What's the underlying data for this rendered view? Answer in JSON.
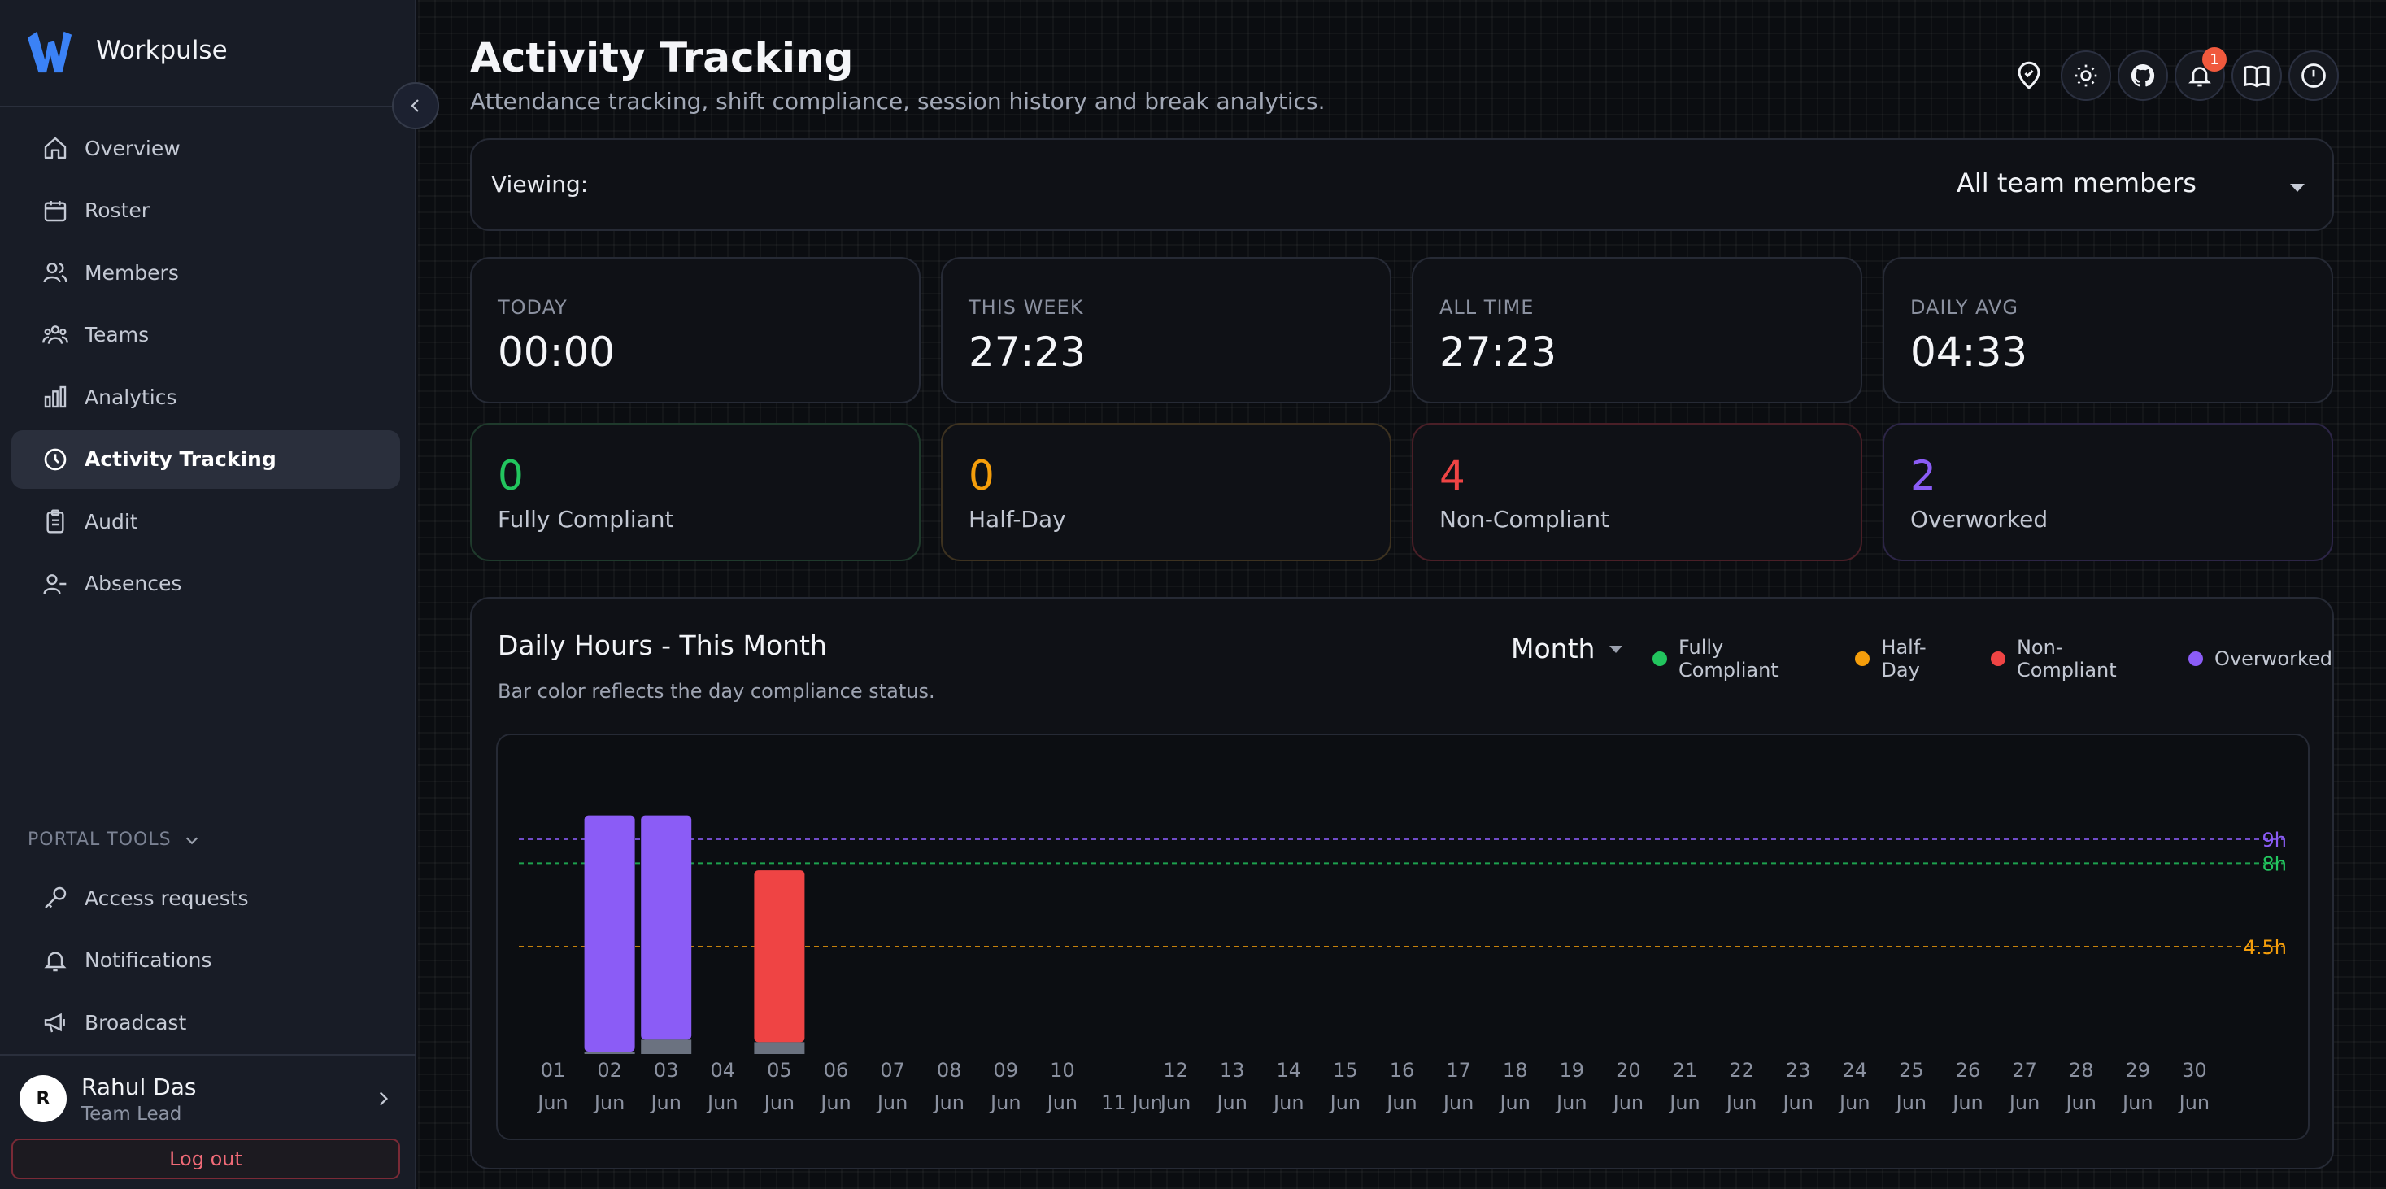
{
  "app": {
    "name": "Workpulse"
  },
  "sidebar": {
    "items": [
      {
        "label": "Overview",
        "icon": "home-icon",
        "active": false
      },
      {
        "label": "Roster",
        "icon": "calendar-icon",
        "active": false
      },
      {
        "label": "Members",
        "icon": "users-icon",
        "active": false
      },
      {
        "label": "Teams",
        "icon": "teams-icon",
        "active": false
      },
      {
        "label": "Analytics",
        "icon": "bar-chart-icon",
        "active": false
      },
      {
        "label": "Activity Tracking",
        "icon": "clock-icon",
        "active": true
      },
      {
        "label": "Audit",
        "icon": "clipboard-icon",
        "active": false
      },
      {
        "label": "Absences",
        "icon": "user-minus-icon",
        "active": false
      }
    ],
    "tools_title": "PORTAL TOOLS",
    "tools": [
      {
        "label": "Access requests",
        "icon": "key-icon"
      },
      {
        "label": "Notifications",
        "icon": "bell-icon"
      },
      {
        "label": "Broadcast",
        "icon": "megaphone-icon"
      }
    ],
    "user": {
      "initial": "R",
      "name": "Rahul Das",
      "role": "Team Lead"
    },
    "logout_label": "Log out"
  },
  "header": {
    "title": "Activity Tracking",
    "subtitle": "Attendance tracking, shift compliance, session history and break analytics.",
    "icons": [
      "location-pin-icon",
      "sun-icon",
      "github-icon",
      "bell-icon",
      "book-icon",
      "alert-circle-icon"
    ],
    "notification_count": "1"
  },
  "viewing": {
    "label": "Viewing:",
    "selected": "All team members"
  },
  "stats": [
    {
      "label": "TODAY",
      "value": "00:00"
    },
    {
      "label": "THIS WEEK",
      "value": "27:23"
    },
    {
      "label": "ALL TIME",
      "value": "27:23"
    },
    {
      "label": "DAILY AVG",
      "value": "04:33"
    }
  ],
  "compliance": [
    {
      "value": "0",
      "label": "Fully Compliant",
      "color": "#22c55e"
    },
    {
      "value": "0",
      "label": "Half-Day",
      "color": "#f59e0b"
    },
    {
      "value": "4",
      "label": "Non-Compliant",
      "color": "#ef4444"
    },
    {
      "value": "2",
      "label": "Overworked",
      "color": "#8b5cf6"
    }
  ],
  "chart": {
    "title": "Daily Hours - This Month",
    "subtitle": "Bar color reflects the day compliance status.",
    "range": "Month",
    "legend": [
      {
        "label": "Fully Compliant",
        "color": "#22c55e"
      },
      {
        "label": "Half-Day",
        "color": "#f59e0b"
      },
      {
        "label": "Non-Compliant",
        "color": "#ef4444"
      },
      {
        "label": "Overworked",
        "color": "#8b5cf6"
      }
    ]
  },
  "chart_data": {
    "type": "bar",
    "title": "Daily Hours - This Month",
    "categories": [
      "01 Jun",
      "02 Jun",
      "03 Jun",
      "04 Jun",
      "05 Jun",
      "06 Jun",
      "07 Jun",
      "08 Jun",
      "09 Jun",
      "10 Jun",
      "11 Jun",
      "12 Jun",
      "13 Jun",
      "14 Jun",
      "15 Jun",
      "16 Jun",
      "17 Jun",
      "18 Jun",
      "19 Jun",
      "20 Jun",
      "21 Jun",
      "22 Jun",
      "23 Jun",
      "24 Jun",
      "25 Jun",
      "26 Jun",
      "27 Jun",
      "28 Jun",
      "29 Jun",
      "30 Jun"
    ],
    "series": [
      {
        "values": [
          0,
          9.9,
          9.4,
          0,
          7.2,
          0,
          0,
          0,
          0,
          0,
          0,
          0,
          0,
          0,
          0,
          0,
          0,
          0,
          0,
          0,
          0,
          0,
          0,
          0,
          0,
          0,
          0,
          0,
          0,
          0
        ]
      },
      {
        "values": [
          0,
          0.1,
          0.6,
          0,
          0.5,
          0,
          0,
          0,
          0,
          0,
          0,
          0,
          0,
          0,
          0,
          0,
          0,
          0,
          0,
          0,
          0,
          0,
          0,
          0,
          0,
          0,
          0,
          0,
          0,
          0
        ]
      }
    ],
    "bar_colors": [
      null,
      "#8b5cf6",
      "#8b5cf6",
      null,
      "#ef4444"
    ],
    "break_color": "#6b7280",
    "reference_lines": [
      {
        "value": 9,
        "label": "9h",
        "color": "#8b5cf6"
      },
      {
        "value": 8,
        "label": "8h",
        "color": "#22c55e"
      },
      {
        "value": 4.5,
        "label": "4.5h",
        "color": "#f59e0b"
      }
    ],
    "ylim": [
      0,
      12
    ],
    "grid": false
  }
}
